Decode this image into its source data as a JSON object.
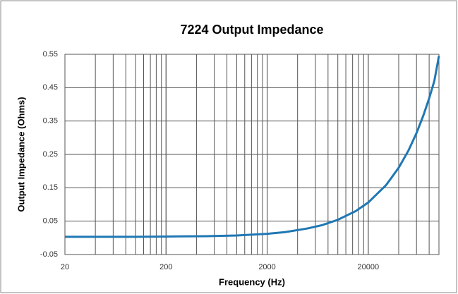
{
  "chart_data": {
    "type": "line",
    "title": "7224 Output Impedance",
    "x_label": "Frequency (Hz)",
    "y_label": "Output Impedance (Ohms)",
    "x": [
      20,
      50,
      100,
      200,
      500,
      1000,
      2000,
      3000,
      5000,
      7000,
      10000,
      15000,
      20000,
      30000,
      40000,
      50000,
      60000,
      70000,
      80000,
      90000,
      100000
    ],
    "series": [
      {
        "name": "Output Impedance",
        "color": "#1f77b4",
        "values": [
          0.003,
          0.003,
          0.003,
          0.004,
          0.005,
          0.007,
          0.012,
          0.017,
          0.028,
          0.038,
          0.054,
          0.08,
          0.106,
          0.158,
          0.21,
          0.262,
          0.314,
          0.366,
          0.418,
          0.47,
          0.545
        ]
      }
    ],
    "xlog": true,
    "xlim": [
      20,
      100000
    ],
    "xticks": [
      20,
      200,
      2000,
      20000
    ],
    "xgrid": [
      40,
      60,
      80,
      100,
      120,
      140,
      160,
      180,
      200,
      400,
      600,
      800,
      1000,
      1200,
      1400,
      1600,
      1800,
      2000,
      4000,
      6000,
      8000,
      10000,
      12000,
      14000,
      16000,
      18000,
      20000,
      40000,
      60000,
      80000,
      100000
    ],
    "ylim": [
      -0.05,
      0.55
    ],
    "yticks": [
      -0.05,
      0.05,
      0.15,
      0.25,
      0.35,
      0.45,
      0.55
    ],
    "grid": true
  }
}
